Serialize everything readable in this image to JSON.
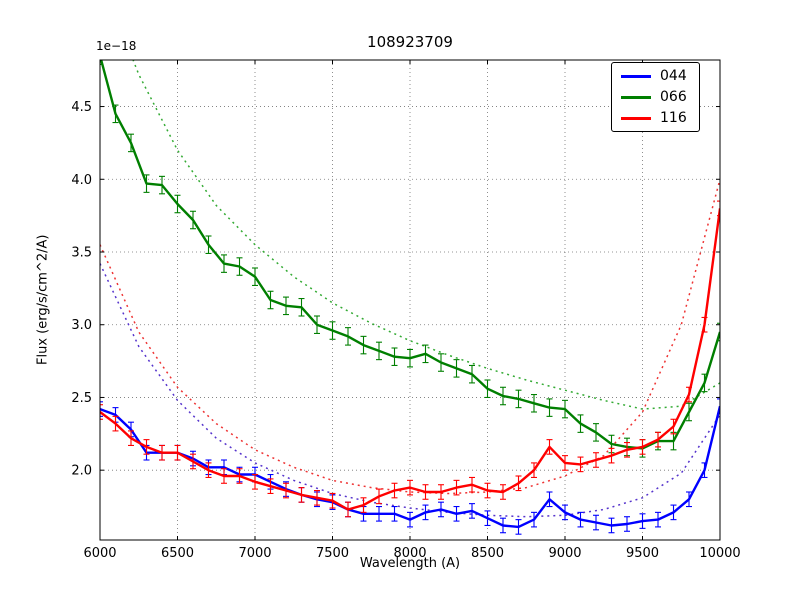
{
  "chart_data": {
    "type": "line",
    "title": "108923709",
    "xlabel": "Wavelength (A)",
    "ylabel": "Flux (erg/s/cm^2/A)",
    "offset_label": "1e−18",
    "xlim": [
      6000,
      10000
    ],
    "ylim": [
      1.52,
      4.82
    ],
    "xticks": [
      6000,
      6500,
      7000,
      7500,
      8000,
      8500,
      9000,
      9500,
      10000
    ],
    "yticks": [
      2.0,
      2.5,
      3.0,
      3.5,
      4.0,
      4.5
    ],
    "grid": true,
    "legend_position": "upper right",
    "series": [
      {
        "name": "044",
        "color": "#0000ff",
        "err": 0.05,
        "x_start": 6000,
        "x_step": 100,
        "values": [
          2.42,
          2.38,
          2.28,
          2.12,
          2.12,
          2.12,
          2.08,
          2.02,
          2.02,
          1.97,
          1.97,
          1.92,
          1.87,
          1.83,
          1.8,
          1.78,
          1.73,
          1.7,
          1.7,
          1.7,
          1.66,
          1.71,
          1.73,
          1.7,
          1.72,
          1.67,
          1.62,
          1.61,
          1.66,
          1.8,
          1.71,
          1.66,
          1.64,
          1.62,
          1.63,
          1.65,
          1.66,
          1.71,
          1.8,
          2.0,
          2.44
        ]
      },
      {
        "name": "066",
        "color": "#007f00",
        "err": 0.06,
        "x_start": 6000,
        "x_step": 100,
        "values": [
          4.85,
          4.45,
          4.25,
          3.97,
          3.96,
          3.83,
          3.72,
          3.55,
          3.42,
          3.4,
          3.33,
          3.17,
          3.13,
          3.12,
          3.0,
          2.96,
          2.92,
          2.86,
          2.82,
          2.78,
          2.77,
          2.8,
          2.74,
          2.7,
          2.66,
          2.56,
          2.51,
          2.49,
          2.46,
          2.43,
          2.42,
          2.32,
          2.26,
          2.18,
          2.16,
          2.15,
          2.2,
          2.2,
          2.4,
          2.6,
          2.95
        ]
      },
      {
        "name": "116",
        "color": "#ff0000",
        "err": 0.05,
        "x_start": 6000,
        "x_step": 100,
        "values": [
          2.4,
          2.32,
          2.22,
          2.16,
          2.12,
          2.12,
          2.06,
          2.0,
          1.96,
          1.96,
          1.92,
          1.89,
          1.86,
          1.83,
          1.81,
          1.79,
          1.73,
          1.76,
          1.82,
          1.86,
          1.88,
          1.85,
          1.85,
          1.88,
          1.9,
          1.86,
          1.85,
          1.91,
          2.0,
          2.16,
          2.05,
          2.04,
          2.07,
          2.1,
          2.14,
          2.16,
          2.21,
          2.3,
          2.52,
          3.0,
          3.8
        ]
      }
    ],
    "models": [
      {
        "name": "model-044",
        "color": "#5533cc",
        "style": "dotted",
        "x_start": 6000,
        "x_step": 250,
        "values": [
          3.42,
          2.85,
          2.48,
          2.22,
          2.05,
          1.93,
          1.84,
          1.78,
          1.74,
          1.71,
          1.69,
          1.68,
          1.69,
          1.73,
          1.81,
          1.98,
          2.38
        ]
      },
      {
        "name": "model-066",
        "color": "#33aa33",
        "style": "dotted",
        "x_start": 6000,
        "x_step": 250,
        "values": [
          5.4,
          4.72,
          4.2,
          3.82,
          3.55,
          3.33,
          3.15,
          3.01,
          2.89,
          2.79,
          2.7,
          2.62,
          2.55,
          2.48,
          2.42,
          2.44,
          2.6
        ]
      },
      {
        "name": "model-116",
        "color": "#ee3333",
        "style": "dotted",
        "x_start": 6000,
        "x_step": 250,
        "values": [
          3.55,
          2.95,
          2.57,
          2.32,
          2.14,
          2.02,
          1.93,
          1.88,
          1.85,
          1.84,
          1.85,
          1.88,
          1.96,
          2.1,
          2.4,
          3.0,
          4.0
        ]
      }
    ]
  }
}
